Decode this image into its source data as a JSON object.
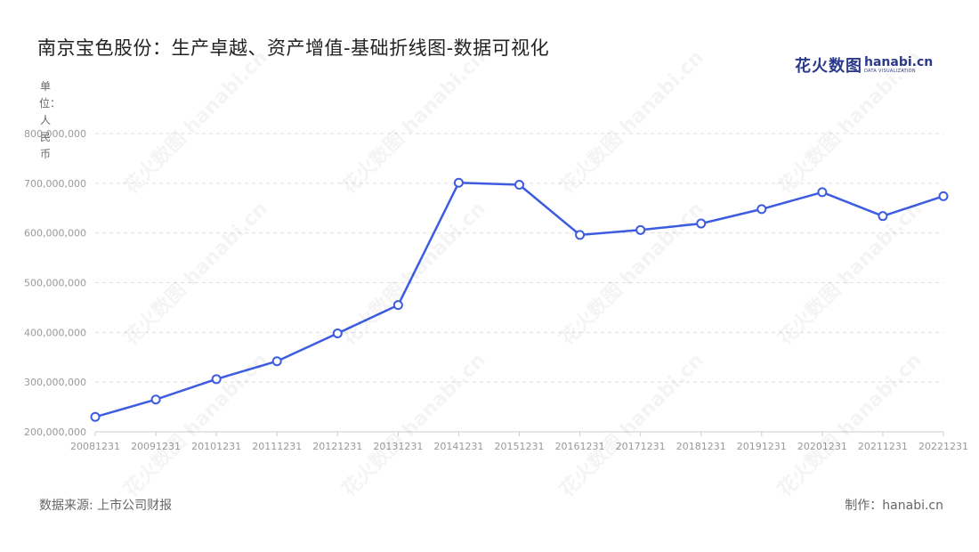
{
  "header": {
    "title": "南京宝色股份：生产卓越、资产增值-基础折线图-数据可视化",
    "logo_cn": "花火数图",
    "logo_en": "hanabi.cn",
    "logo_sub": "DATA VISUALIZATION"
  },
  "unit_label": "单位：人民币",
  "footer": {
    "source": "数据来源: 上市公司财报",
    "maker": "制作：hanabi.cn"
  },
  "colors": {
    "line": "#3d5ce0",
    "grid": "#dddddd",
    "axis": "#cccccc"
  },
  "chart_data": {
    "type": "line",
    "title": "南京宝色股份：生产卓越、资产增值-基础折线图-数据可视化",
    "ylabel": "单位：人民币",
    "xlabel": "",
    "ylim": [
      200000000,
      800000000
    ],
    "yticks": [
      200000000,
      300000000,
      400000000,
      500000000,
      600000000,
      700000000,
      800000000
    ],
    "ytick_labels": [
      "200,000,000",
      "300,000,000",
      "400,000,000",
      "500,000,000",
      "600,000,000",
      "700,000,000",
      "800,000,000"
    ],
    "grid": true,
    "categories": [
      "20081231",
      "20091231",
      "20101231",
      "20111231",
      "20121231",
      "20131231",
      "20141231",
      "20151231",
      "20161231",
      "20171231",
      "20181231",
      "20191231",
      "20201231",
      "20211231",
      "20221231"
    ],
    "series": [
      {
        "values": [
          230000000,
          265000000,
          306000000,
          342000000,
          398000000,
          455000000,
          701000000,
          697000000,
          596000000,
          606000000,
          619000000,
          648000000,
          682000000,
          634000000,
          674000000
        ]
      }
    ]
  }
}
